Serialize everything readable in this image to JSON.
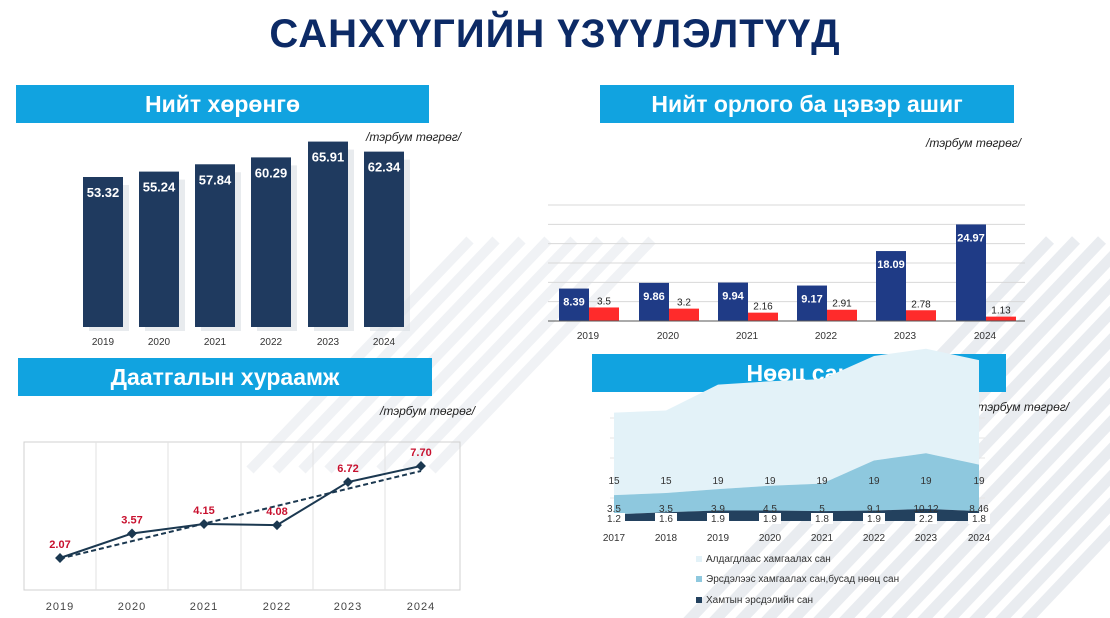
{
  "page_title": "САНХҮҮГИЙН ҮЗҮҮЛЭЛТҮҮД",
  "colors": {
    "navy": "#1f3a5f",
    "bright_navy": "#1f3b86",
    "red": "#ff2b2b",
    "banner": "#11a3e0",
    "light_blue": "#e3f2f8",
    "mid_blue": "#8ec8de",
    "dark": "#1b3850"
  },
  "chart_data": [
    {
      "id": "total_assets",
      "type": "bar",
      "title": "Нийт хөрөнгө",
      "unit_label": "/тэрбум төгрөг/",
      "categories": [
        "2019",
        "2020",
        "2021",
        "2022",
        "2023",
        "2024"
      ],
      "values": [
        53.32,
        55.24,
        57.84,
        60.29,
        65.91,
        62.34
      ],
      "value_labels": [
        "53.32",
        "55.24",
        "57.84",
        "60.29",
        "65.91",
        "62.34"
      ],
      "grid": false
    },
    {
      "id": "income_profit",
      "type": "bar",
      "title": "Нийт орлого ба цэвэр ашиг",
      "unit_label": "/тэрбум төгрөг/",
      "categories": [
        "2019",
        "2020",
        "2021",
        "2022",
        "2023",
        "2024"
      ],
      "series": [
        {
          "values": [
            8.39,
            9.86,
            9.94,
            9.17,
            18.09,
            24.97
          ],
          "labels": [
            "8.39",
            "9.86",
            "9.94",
            "9.17",
            "18.09",
            "24.97"
          ]
        },
        {
          "values": [
            3.5,
            3.2,
            2.16,
            2.91,
            2.78,
            1.13
          ],
          "labels": [
            "3.5",
            "3.2",
            "2.16",
            "2.91",
            "2.78",
            "1.13"
          ]
        }
      ],
      "ylim": [
        0,
        30
      ],
      "grid": true
    },
    {
      "id": "premiums",
      "type": "line",
      "title": "Даатгалын хураамж",
      "unit_label": "/тэрбум төгрөг/",
      "categories": [
        "2019",
        "2020",
        "2021",
        "2022",
        "2023",
        "2024"
      ],
      "values": [
        2.07,
        3.57,
        4.15,
        4.08,
        6.72,
        7.7
      ],
      "value_labels": [
        "2.07",
        "3.57",
        "4.15",
        "4.08",
        "6.72",
        "7.70"
      ],
      "trendline": true,
      "ylim": [
        0,
        9
      ],
      "grid": "vertical"
    },
    {
      "id": "reserve_fund",
      "type": "area",
      "title": "Нөөц сан",
      "unit_label": "/тэрбум төгрөг/",
      "categories": [
        "2017",
        "2018",
        "2019",
        "2020",
        "2021",
        "2022",
        "2023",
        "2024"
      ],
      "stacked": true,
      "ylim": [
        0,
        30
      ],
      "legend_position": "bottom",
      "series": [
        {
          "name": "Алдагдлаас хамгаалах сан",
          "values": [
            15,
            15,
            19,
            19,
            19,
            19,
            19,
            19
          ],
          "labels": [
            "15",
            "15",
            "19",
            "19",
            "19",
            "19",
            "19",
            "19"
          ]
        },
        {
          "name": "Эрсдэлээс хамгаалах сан,бусад нөөц сан",
          "values": [
            3.5,
            3.5,
            3.9,
            4.5,
            5,
            9.1,
            10.12,
            8.46
          ],
          "labels": [
            "3.5",
            "3.5",
            "3.9",
            "4.5",
            "5",
            "9.1",
            "10.12",
            "8.46"
          ]
        },
        {
          "name": "Хамтын эрсдэлийн сан",
          "values": [
            1.2,
            1.6,
            1.9,
            1.9,
            1.8,
            1.9,
            2.2,
            1.8
          ],
          "labels": [
            "1.2",
            "1.6",
            "1.9",
            "1.9",
            "1.8",
            "1.9",
            "2.2",
            "1.8"
          ]
        }
      ]
    }
  ]
}
